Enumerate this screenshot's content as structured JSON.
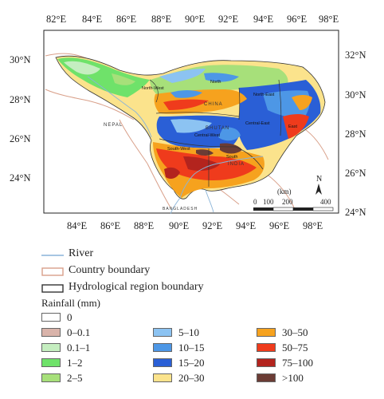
{
  "map": {
    "top_lon_labels": [
      "82°E",
      "84°E",
      "86°E",
      "88°E",
      "90°E",
      "92°E",
      "94°E",
      "96°E",
      "98°E"
    ],
    "bottom_lon_labels": [
      "84°E",
      "86°E",
      "88°E",
      "90°E",
      "92°E",
      "94°E",
      "96°E",
      "98°E"
    ],
    "left_lat_labels": [
      "30°N",
      "28°N",
      "26°N",
      "24°N"
    ],
    "right_lat_labels": [
      "32°N",
      "30°N",
      "28°N",
      "26°N",
      "24°N"
    ],
    "region_labels": [
      "North-West",
      "North",
      "North-East",
      "Central-West",
      "Central-East",
      "East",
      "South-West",
      "South"
    ],
    "country_labels": [
      "NEPAL",
      "CHINA",
      "BHUTAN",
      "INDIA",
      "BANGLADESH"
    ],
    "scale": {
      "unit": "(km)",
      "ticks": [
        "0",
        "100",
        "200",
        "400"
      ]
    },
    "north_arrow": "N"
  },
  "legend": {
    "lines": [
      {
        "label": "River",
        "color": "#8ab4d8"
      },
      {
        "label": "Country boundary",
        "color": "#d9a08a"
      },
      {
        "label": "Hydrological region boundary",
        "color": "#333333"
      }
    ],
    "rainfall_title": "Rainfall (mm)",
    "rainfall_classes": [
      {
        "label": "0",
        "color": "#ffffff"
      },
      {
        "label": "0–0.1",
        "color": "#d9b3aa"
      },
      {
        "label": "0.1–1",
        "color": "#c5eec0"
      },
      {
        "label": "1–2",
        "color": "#6fe26a"
      },
      {
        "label": "2–5",
        "color": "#a7e07a"
      },
      {
        "label": "5–10",
        "color": "#8cc3f2"
      },
      {
        "label": "10–15",
        "color": "#4d97e6"
      },
      {
        "label": "15–20",
        "color": "#2a5fd6"
      },
      {
        "label": "20–30",
        "color": "#fbe38c"
      },
      {
        "label": "30–50",
        "color": "#f6a21e"
      },
      {
        "label": "50–75",
        "color": "#ef3b1c"
      },
      {
        "label": "75–100",
        "color": "#b3241e"
      },
      {
        "label": ">100",
        "color": "#6b3c35"
      }
    ]
  }
}
